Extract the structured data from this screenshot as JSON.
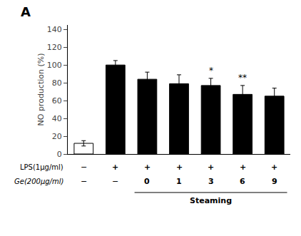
{
  "chart_data": {
    "type": "bar",
    "panel_label": "A",
    "ylabel": "NO production (%)",
    "categories": [
      null,
      null,
      null,
      null,
      null,
      null,
      null
    ],
    "values": [
      12,
      100,
      84,
      79,
      77,
      67,
      65
    ],
    "errors": [
      3,
      5,
      8,
      10,
      8,
      10,
      9
    ],
    "colors": [
      "white",
      "black",
      "black",
      "black",
      "black",
      "black",
      "black"
    ],
    "sig_labels": [
      null,
      null,
      null,
      null,
      "*",
      "**",
      null
    ],
    "rows": [
      {
        "label": "LPS(1μg/ml)",
        "values": [
          "−",
          "+",
          "+",
          "+",
          "+",
          "+",
          "+"
        ]
      },
      {
        "label": "Ge(200μg/ml)",
        "values": [
          "−",
          "−",
          "0",
          "1",
          "3",
          "6",
          "9"
        ]
      }
    ],
    "bracket": {
      "label": "Steaming",
      "from": 2,
      "to": 6
    },
    "ylim": [
      0,
      145
    ],
    "yticks": [
      0,
      20,
      40,
      60,
      80,
      100,
      120,
      140
    ],
    "grid": false,
    "tick_labels": "y"
  }
}
